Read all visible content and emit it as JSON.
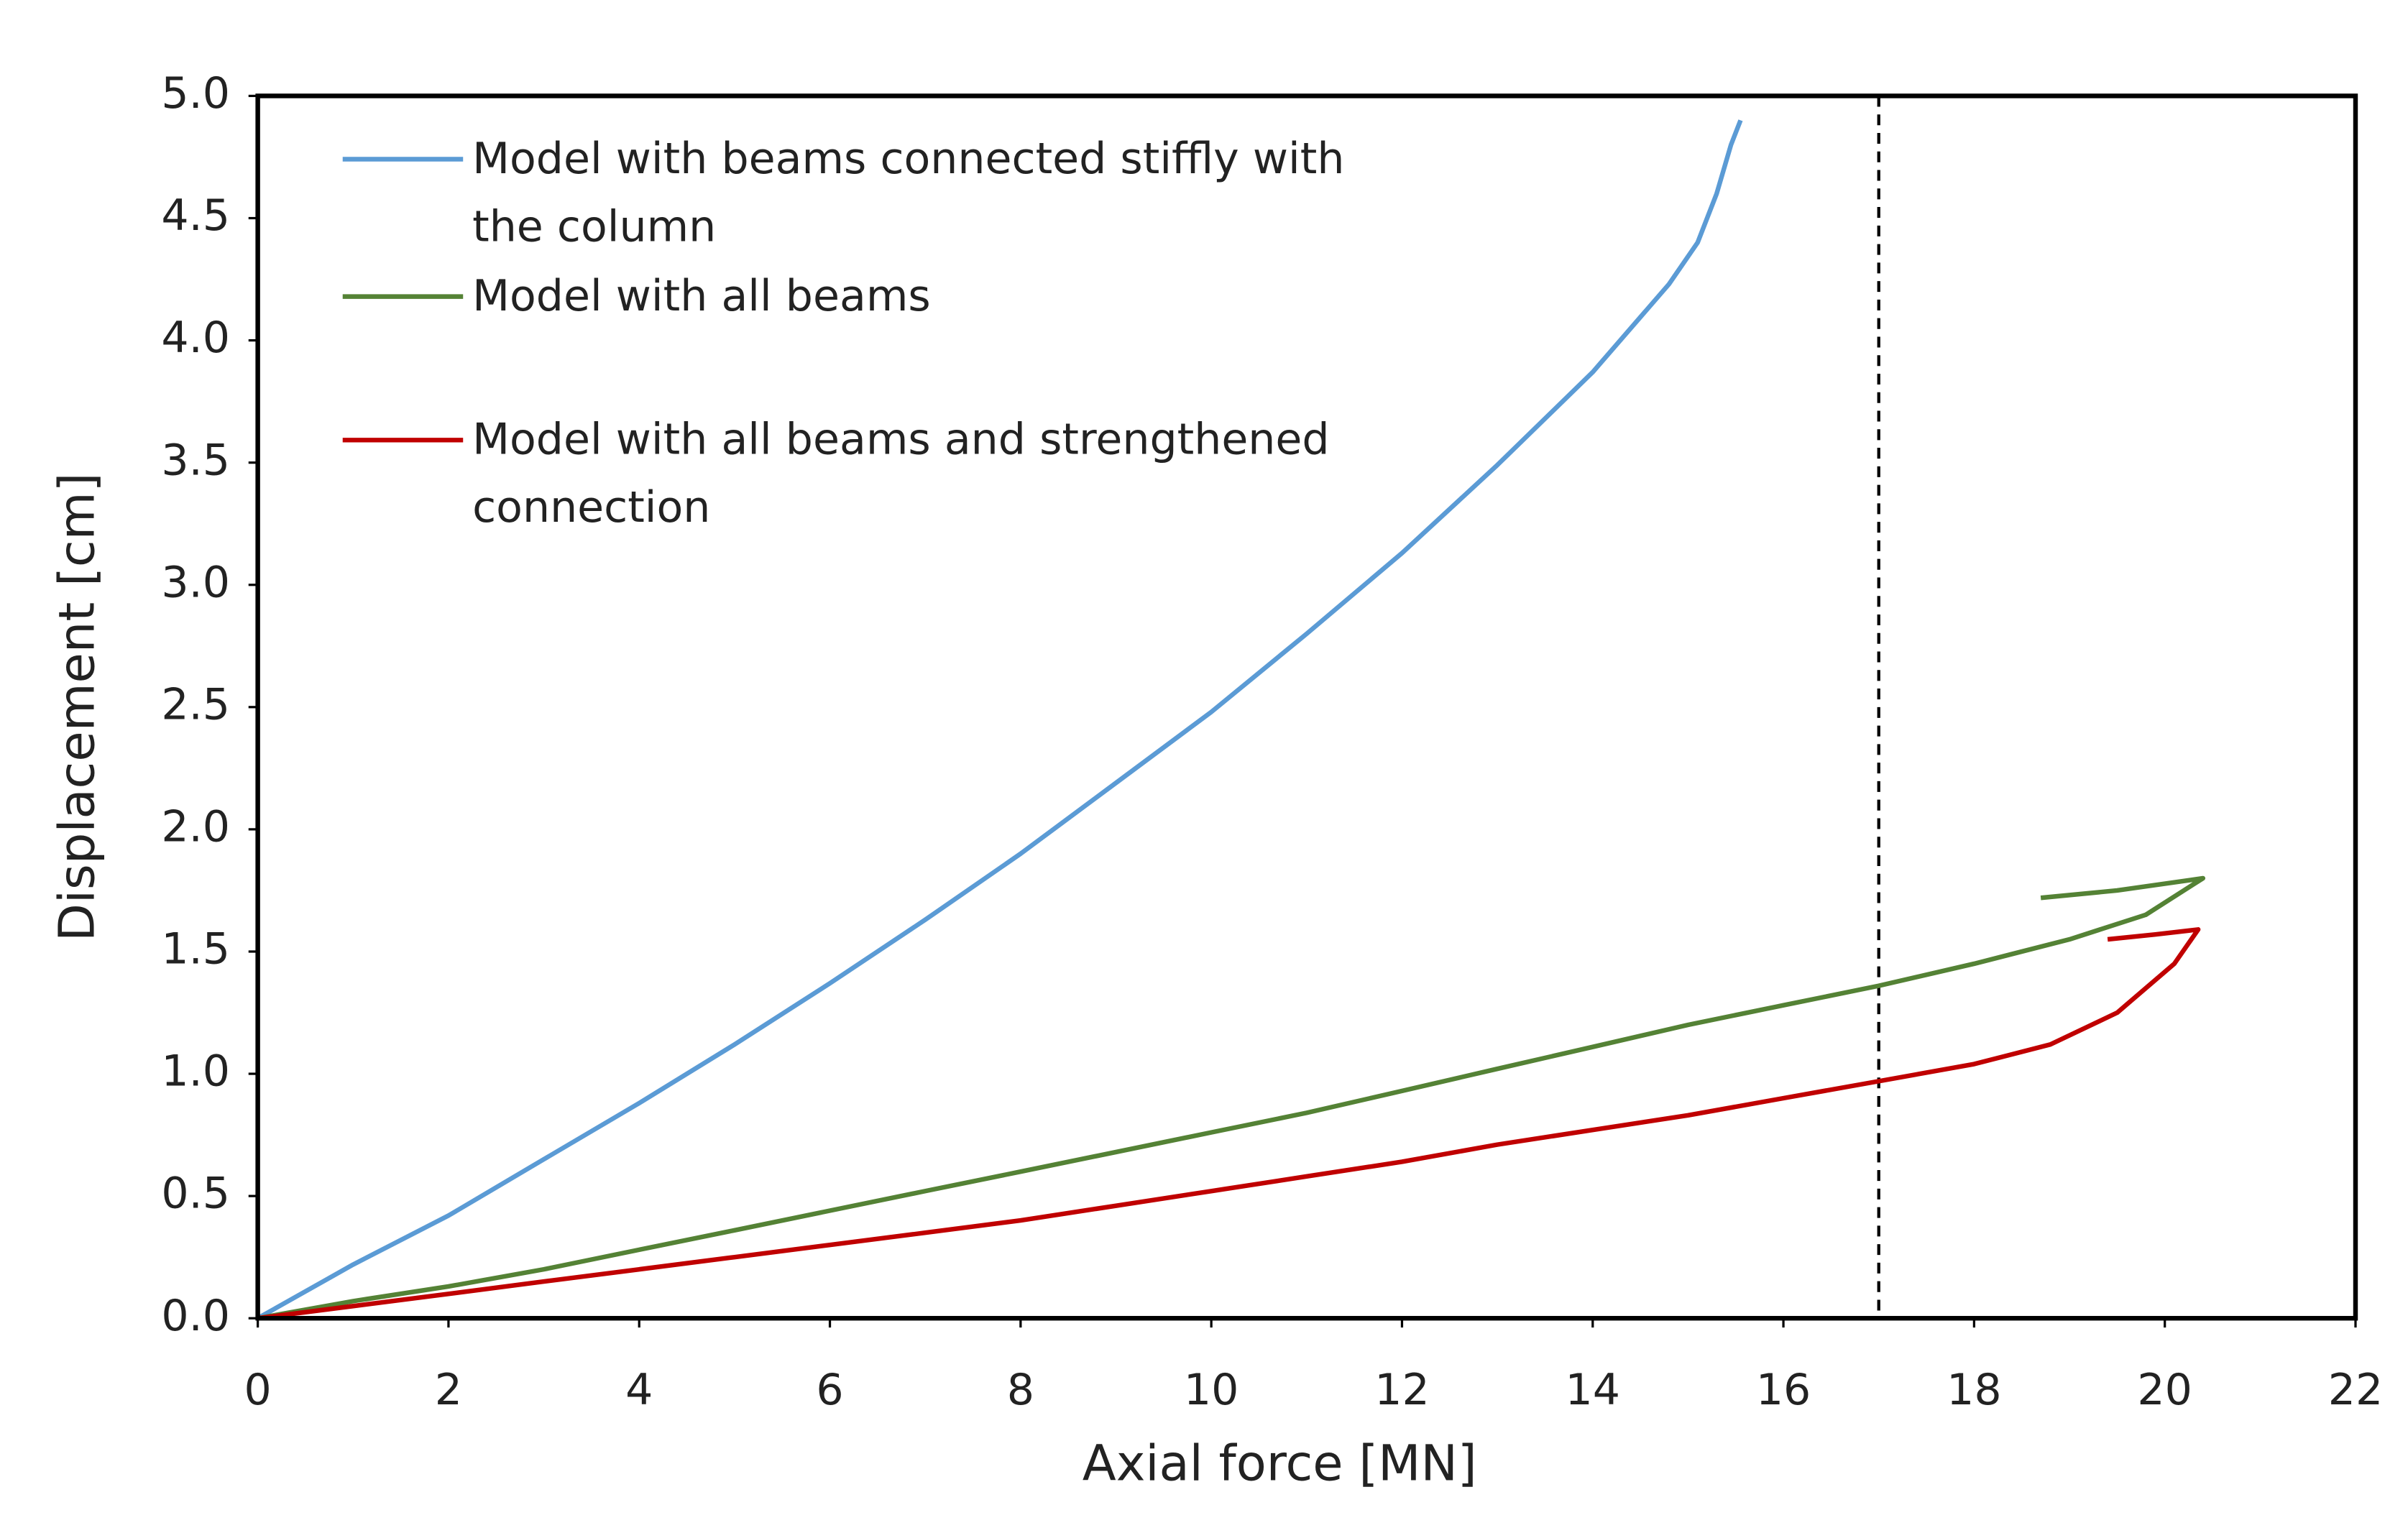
{
  "chart_data": {
    "type": "line",
    "x_label": "Axial force [MN]",
    "y_label": "Displacement  [cm]",
    "xlim": [
      0,
      22
    ],
    "xticks": [
      0,
      2,
      4,
      6,
      8,
      10,
      12,
      14,
      16,
      18,
      20,
      22
    ],
    "ylim": [
      0,
      5
    ],
    "yticks": [
      {
        "value": 0,
        "label": "0.0"
      },
      0.5,
      {
        "value": 1,
        "label": "1.0"
      },
      1.5,
      {
        "value": 2,
        "label": "2.0"
      },
      2.5,
      {
        "value": 3,
        "label": "3.0"
      },
      3.5,
      {
        "value": 4,
        "label": "4.0"
      },
      4.5,
      {
        "value": 5,
        "label": "5.0"
      }
    ],
    "vline": 17,
    "legend": "upper left",
    "series": [
      {
        "name": "Model with beams connected stiffly with the column",
        "color": "#5b9bd5",
        "x": [
          0,
          1,
          2,
          3,
          4,
          5,
          6,
          7,
          8,
          9,
          10,
          11,
          12,
          13,
          14,
          14.8,
          15.1,
          15.3,
          15.45,
          15.55
        ],
        "values": [
          0,
          0.22,
          0.42,
          0.65,
          0.88,
          1.12,
          1.37,
          1.63,
          1.9,
          2.19,
          2.48,
          2.8,
          3.13,
          3.49,
          3.87,
          4.23,
          4.4,
          4.6,
          4.8,
          4.9
        ]
      },
      {
        "name": "Model with all beams",
        "color": "#548235",
        "x": [
          0,
          1,
          2,
          3,
          4,
          5,
          6,
          7,
          8,
          9,
          10,
          11,
          12,
          13,
          14,
          15,
          16,
          17,
          18,
          19,
          19.8,
          20.4,
          19.5,
          18.7
        ],
        "values": [
          0,
          0.07,
          0.13,
          0.2,
          0.28,
          0.36,
          0.44,
          0.52,
          0.6,
          0.68,
          0.76,
          0.84,
          0.93,
          1.02,
          1.11,
          1.2,
          1.28,
          1.36,
          1.45,
          1.55,
          1.65,
          1.8,
          1.75,
          1.72
        ]
      },
      {
        "name": "Model with all beams and strengthened connection",
        "color": "#c00000",
        "x": [
          0,
          1,
          2,
          3,
          4,
          5,
          6,
          7,
          8,
          9,
          10,
          11,
          12,
          13,
          14,
          15,
          16,
          17,
          18,
          18.8,
          19.5,
          20.1,
          20.35,
          19.9,
          19.4
        ],
        "values": [
          0,
          0.05,
          0.1,
          0.15,
          0.2,
          0.25,
          0.3,
          0.35,
          0.4,
          0.46,
          0.52,
          0.58,
          0.64,
          0.71,
          0.77,
          0.83,
          0.9,
          0.97,
          1.04,
          1.12,
          1.25,
          1.45,
          1.59,
          1.57,
          1.55
        ]
      }
    ]
  }
}
